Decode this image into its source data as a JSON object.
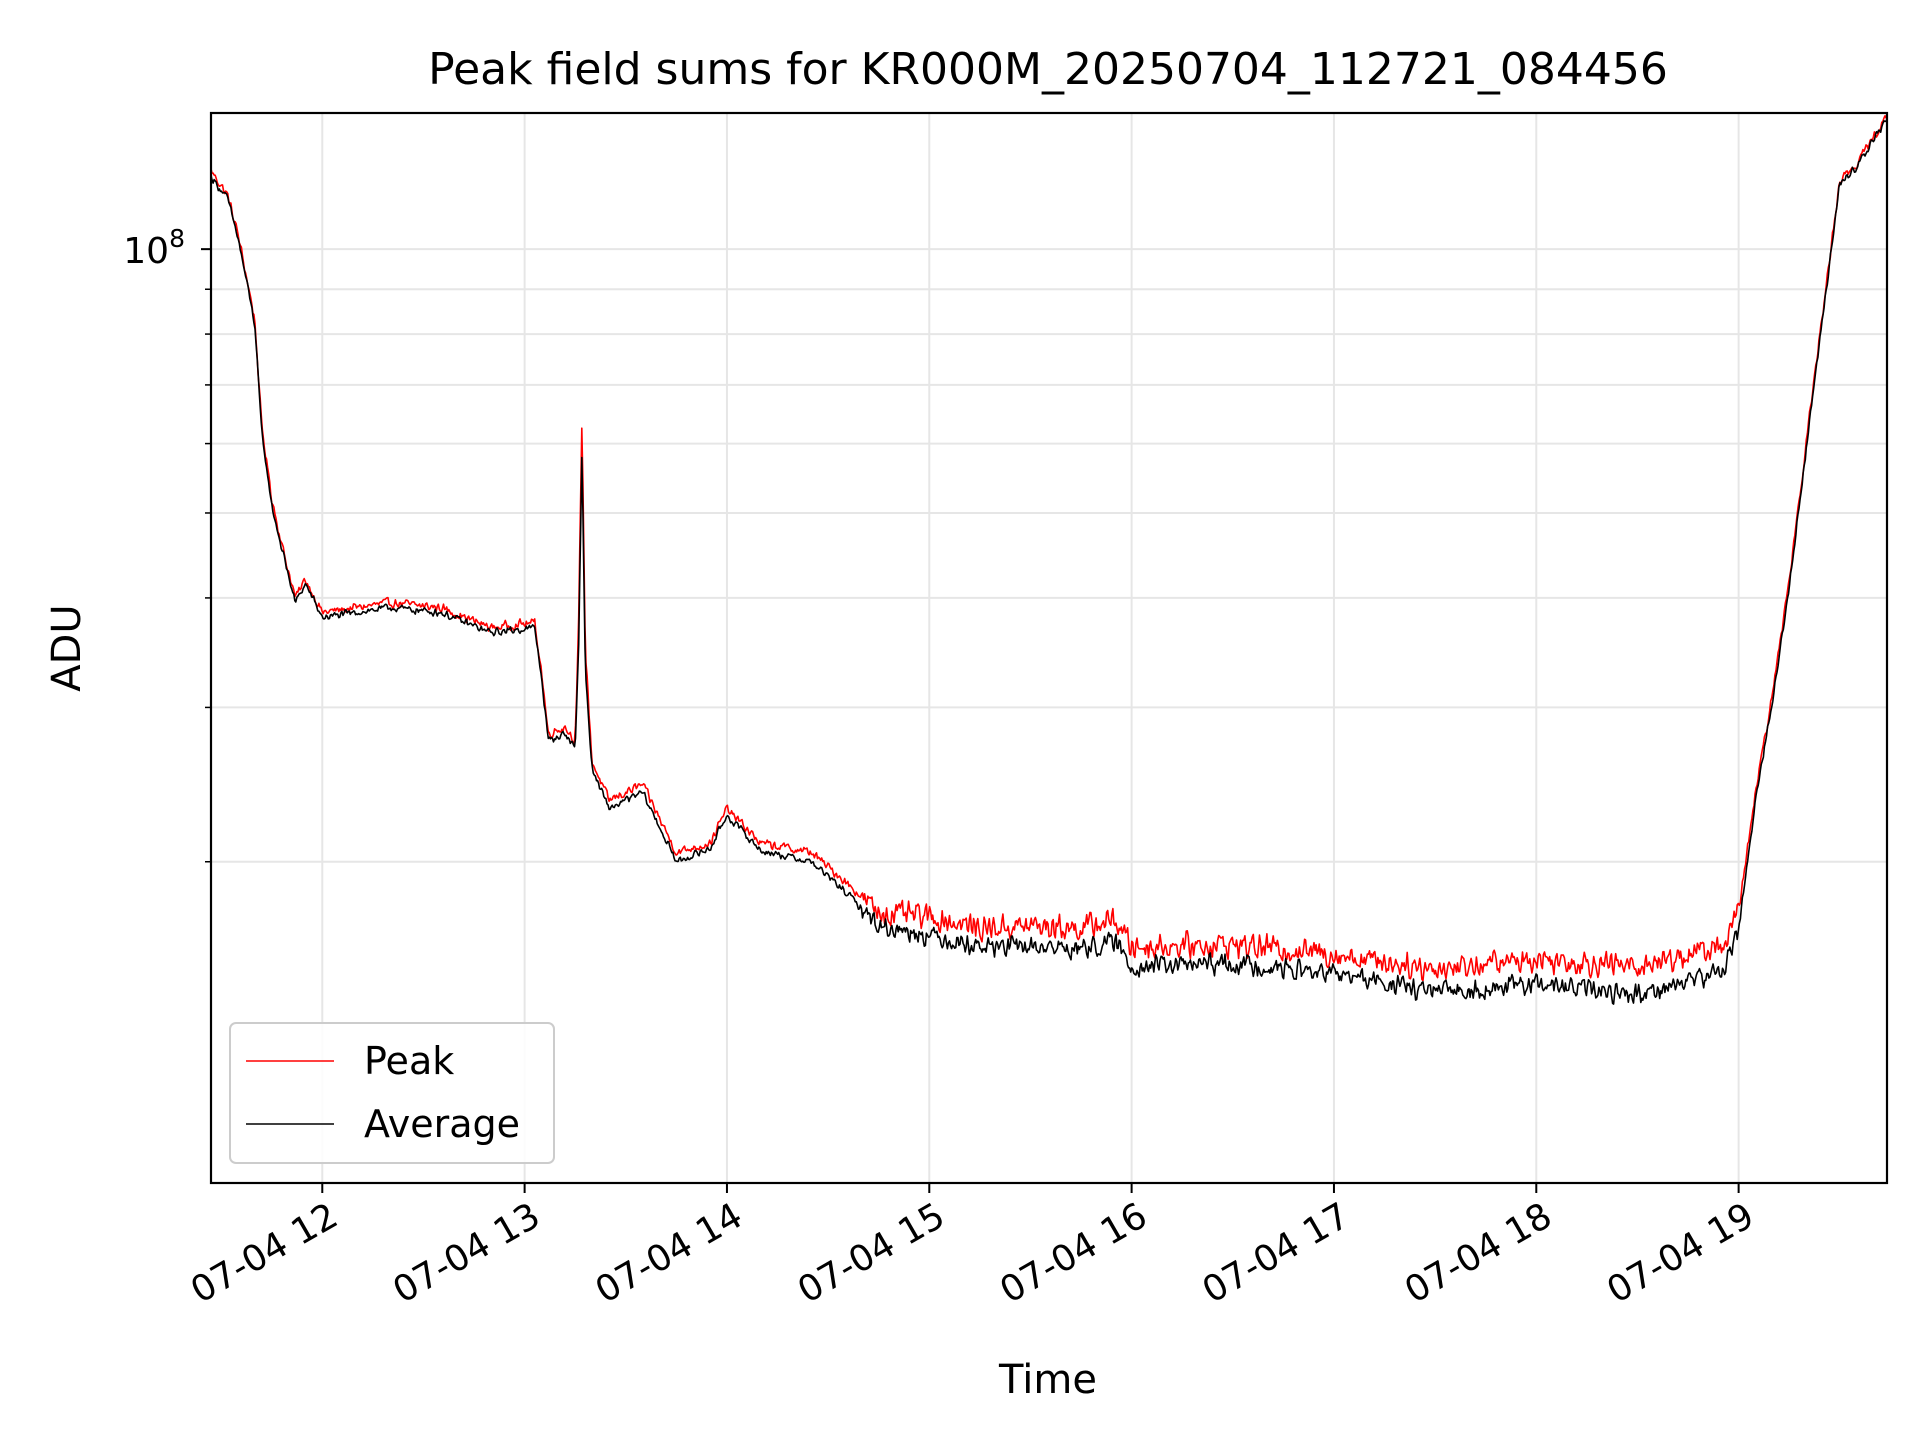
{
  "chart_data": {
    "type": "line",
    "title": "Peak field sums for KR000M_20250704_112721_084456",
    "xlabel": "Time",
    "ylabel": "ADU",
    "yscale": "log",
    "ylim": [
      8600000,
      143000000
    ],
    "xlim": [
      "2025-07-04 11:27",
      "2025-07-04 19:44"
    ],
    "grid": true,
    "legend_loc": "lower left",
    "x_ticks": [
      {
        "t": "2025-07-04 12:00",
        "label": "07-04 12"
      },
      {
        "t": "2025-07-04 13:00",
        "label": "07-04 13"
      },
      {
        "t": "2025-07-04 14:00",
        "label": "07-04 14"
      },
      {
        "t": "2025-07-04 15:00",
        "label": "07-04 15"
      },
      {
        "t": "2025-07-04 16:00",
        "label": "07-04 16"
      },
      {
        "t": "2025-07-04 17:00",
        "label": "07-04 17"
      },
      {
        "t": "2025-07-04 18:00",
        "label": "07-04 18"
      },
      {
        "t": "2025-07-04 19:00",
        "label": "07-04 19"
      }
    ],
    "y_ticks": [
      {
        "value": 100000000,
        "base": "10",
        "exp": "8"
      }
    ],
    "y_minor_ticks": [
      20000000,
      30000000,
      40000000,
      50000000,
      60000000,
      70000000,
      80000000,
      90000000
    ],
    "series": [
      {
        "name": "Peak",
        "color": "#ff0000",
        "noise": 0.05,
        "points": [
          [
            "2025-07-04 11:27",
            123000000
          ],
          [
            "2025-07-04 11:32",
            115000000
          ],
          [
            "2025-07-04 11:35",
            104000000
          ],
          [
            "2025-07-04 11:38",
            91000000
          ],
          [
            "2025-07-04 11:40",
            83000000
          ],
          [
            "2025-07-04 11:42",
            63000000
          ],
          [
            "2025-07-04 11:45",
            52000000
          ],
          [
            "2025-07-04 11:48",
            46000000
          ],
          [
            "2025-07-04 11:52",
            40000000
          ],
          [
            "2025-07-04 11:55",
            42000000
          ],
          [
            "2025-07-04 12:00",
            38500000
          ],
          [
            "2025-07-04 12:10",
            39000000
          ],
          [
            "2025-07-04 12:20",
            39500000
          ],
          [
            "2025-07-04 12:35",
            39000000
          ],
          [
            "2025-07-04 12:50",
            37000000
          ],
          [
            "2025-07-04 13:03",
            37500000
          ],
          [
            "2025-07-04 13:05",
            33000000
          ],
          [
            "2025-07-04 13:07",
            28000000
          ],
          [
            "2025-07-04 13:12",
            28500000
          ],
          [
            "2025-07-04 13:15",
            27500000
          ],
          [
            "2025-07-04 13:16",
            37000000
          ],
          [
            "2025-07-04 13:17",
            64000000
          ],
          [
            "2025-07-04 13:18",
            35000000
          ],
          [
            "2025-07-04 13:20",
            26000000
          ],
          [
            "2025-07-04 13:25",
            23500000
          ],
          [
            "2025-07-04 13:35",
            24500000
          ],
          [
            "2025-07-04 13:45",
            20500000
          ],
          [
            "2025-07-04 13:55",
            21000000
          ],
          [
            "2025-07-04 14:00",
            23000000
          ],
          [
            "2025-07-04 14:10",
            21000000
          ],
          [
            "2025-07-04 14:25",
            20500000
          ],
          [
            "2025-07-04 14:35",
            19000000
          ],
          [
            "2025-07-04 14:45",
            17500000
          ],
          [
            "2025-07-04 15:00",
            17300000
          ],
          [
            "2025-07-04 15:15",
            16800000
          ],
          [
            "2025-07-04 15:30",
            16900000
          ],
          [
            "2025-07-04 15:45",
            16800000
          ],
          [
            "2025-07-04 15:55",
            17200000
          ],
          [
            "2025-07-04 16:00",
            16000000
          ],
          [
            "2025-07-04 16:30",
            16100000
          ],
          [
            "2025-07-04 17:00",
            15700000
          ],
          [
            "2025-07-04 17:30",
            15100000
          ],
          [
            "2025-07-04 18:00",
            15500000
          ],
          [
            "2025-07-04 18:30",
            15200000
          ],
          [
            "2025-07-04 18:55",
            16000000
          ],
          [
            "2025-07-04 19:00",
            17500000
          ],
          [
            "2025-07-04 19:05",
            24000000
          ],
          [
            "2025-07-04 19:10",
            31000000
          ],
          [
            "2025-07-04 19:15",
            42000000
          ],
          [
            "2025-07-04 19:20",
            60000000
          ],
          [
            "2025-07-04 19:25",
            85000000
          ],
          [
            "2025-07-04 19:30",
            120000000
          ],
          [
            "2025-07-04 19:35",
            125000000
          ],
          [
            "2025-07-04 19:44",
            142000000
          ]
        ]
      },
      {
        "name": "Average",
        "color": "#000000",
        "noise": 0.04,
        "points": [
          [
            "2025-07-04 11:27",
            121000000
          ],
          [
            "2025-07-04 11:32",
            114000000
          ],
          [
            "2025-07-04 11:35",
            103000000
          ],
          [
            "2025-07-04 11:38",
            90000000
          ],
          [
            "2025-07-04 11:40",
            82000000
          ],
          [
            "2025-07-04 11:42",
            62000000
          ],
          [
            "2025-07-04 11:45",
            51000000
          ],
          [
            "2025-07-04 11:48",
            45500000
          ],
          [
            "2025-07-04 11:52",
            39500000
          ],
          [
            "2025-07-04 11:55",
            41500000
          ],
          [
            "2025-07-04 12:00",
            38000000
          ],
          [
            "2025-07-04 12:10",
            38500000
          ],
          [
            "2025-07-04 12:20",
            39000000
          ],
          [
            "2025-07-04 12:35",
            38500000
          ],
          [
            "2025-07-04 12:50",
            36500000
          ],
          [
            "2025-07-04 13:03",
            37000000
          ],
          [
            "2025-07-04 13:05",
            32500000
          ],
          [
            "2025-07-04 13:07",
            27500000
          ],
          [
            "2025-07-04 13:12",
            28000000
          ],
          [
            "2025-07-04 13:15",
            27000000
          ],
          [
            "2025-07-04 13:16",
            35000000
          ],
          [
            "2025-07-04 13:17",
            59000000
          ],
          [
            "2025-07-04 13:18",
            33000000
          ],
          [
            "2025-07-04 13:20",
            25500000
          ],
          [
            "2025-07-04 13:25",
            23000000
          ],
          [
            "2025-07-04 13:35",
            24000000
          ],
          [
            "2025-07-04 13:45",
            20000000
          ],
          [
            "2025-07-04 13:55",
            20700000
          ],
          [
            "2025-07-04 14:00",
            22600000
          ],
          [
            "2025-07-04 14:10",
            20600000
          ],
          [
            "2025-07-04 14:25",
            20000000
          ],
          [
            "2025-07-04 14:35",
            18500000
          ],
          [
            "2025-07-04 14:45",
            16900000
          ],
          [
            "2025-07-04 15:00",
            16500000
          ],
          [
            "2025-07-04 15:15",
            16000000
          ],
          [
            "2025-07-04 15:30",
            16000000
          ],
          [
            "2025-07-04 15:45",
            15900000
          ],
          [
            "2025-07-04 15:55",
            16200000
          ],
          [
            "2025-07-04 16:00",
            15200000
          ],
          [
            "2025-07-04 16:30",
            15300000
          ],
          [
            "2025-07-04 17:00",
            14900000
          ],
          [
            "2025-07-04 17:30",
            14200000
          ],
          [
            "2025-07-04 18:00",
            14500000
          ],
          [
            "2025-07-04 18:30",
            14100000
          ],
          [
            "2025-07-04 18:55",
            15000000
          ],
          [
            "2025-07-04 19:00",
            16700000
          ],
          [
            "2025-07-04 19:05",
            23500000
          ],
          [
            "2025-07-04 19:10",
            30500000
          ],
          [
            "2025-07-04 19:15",
            41000000
          ],
          [
            "2025-07-04 19:20",
            59000000
          ],
          [
            "2025-07-04 19:25",
            84000000
          ],
          [
            "2025-07-04 19:30",
            119000000
          ],
          [
            "2025-07-04 19:35",
            124000000
          ],
          [
            "2025-07-04 19:44",
            141000000
          ]
        ]
      }
    ]
  }
}
